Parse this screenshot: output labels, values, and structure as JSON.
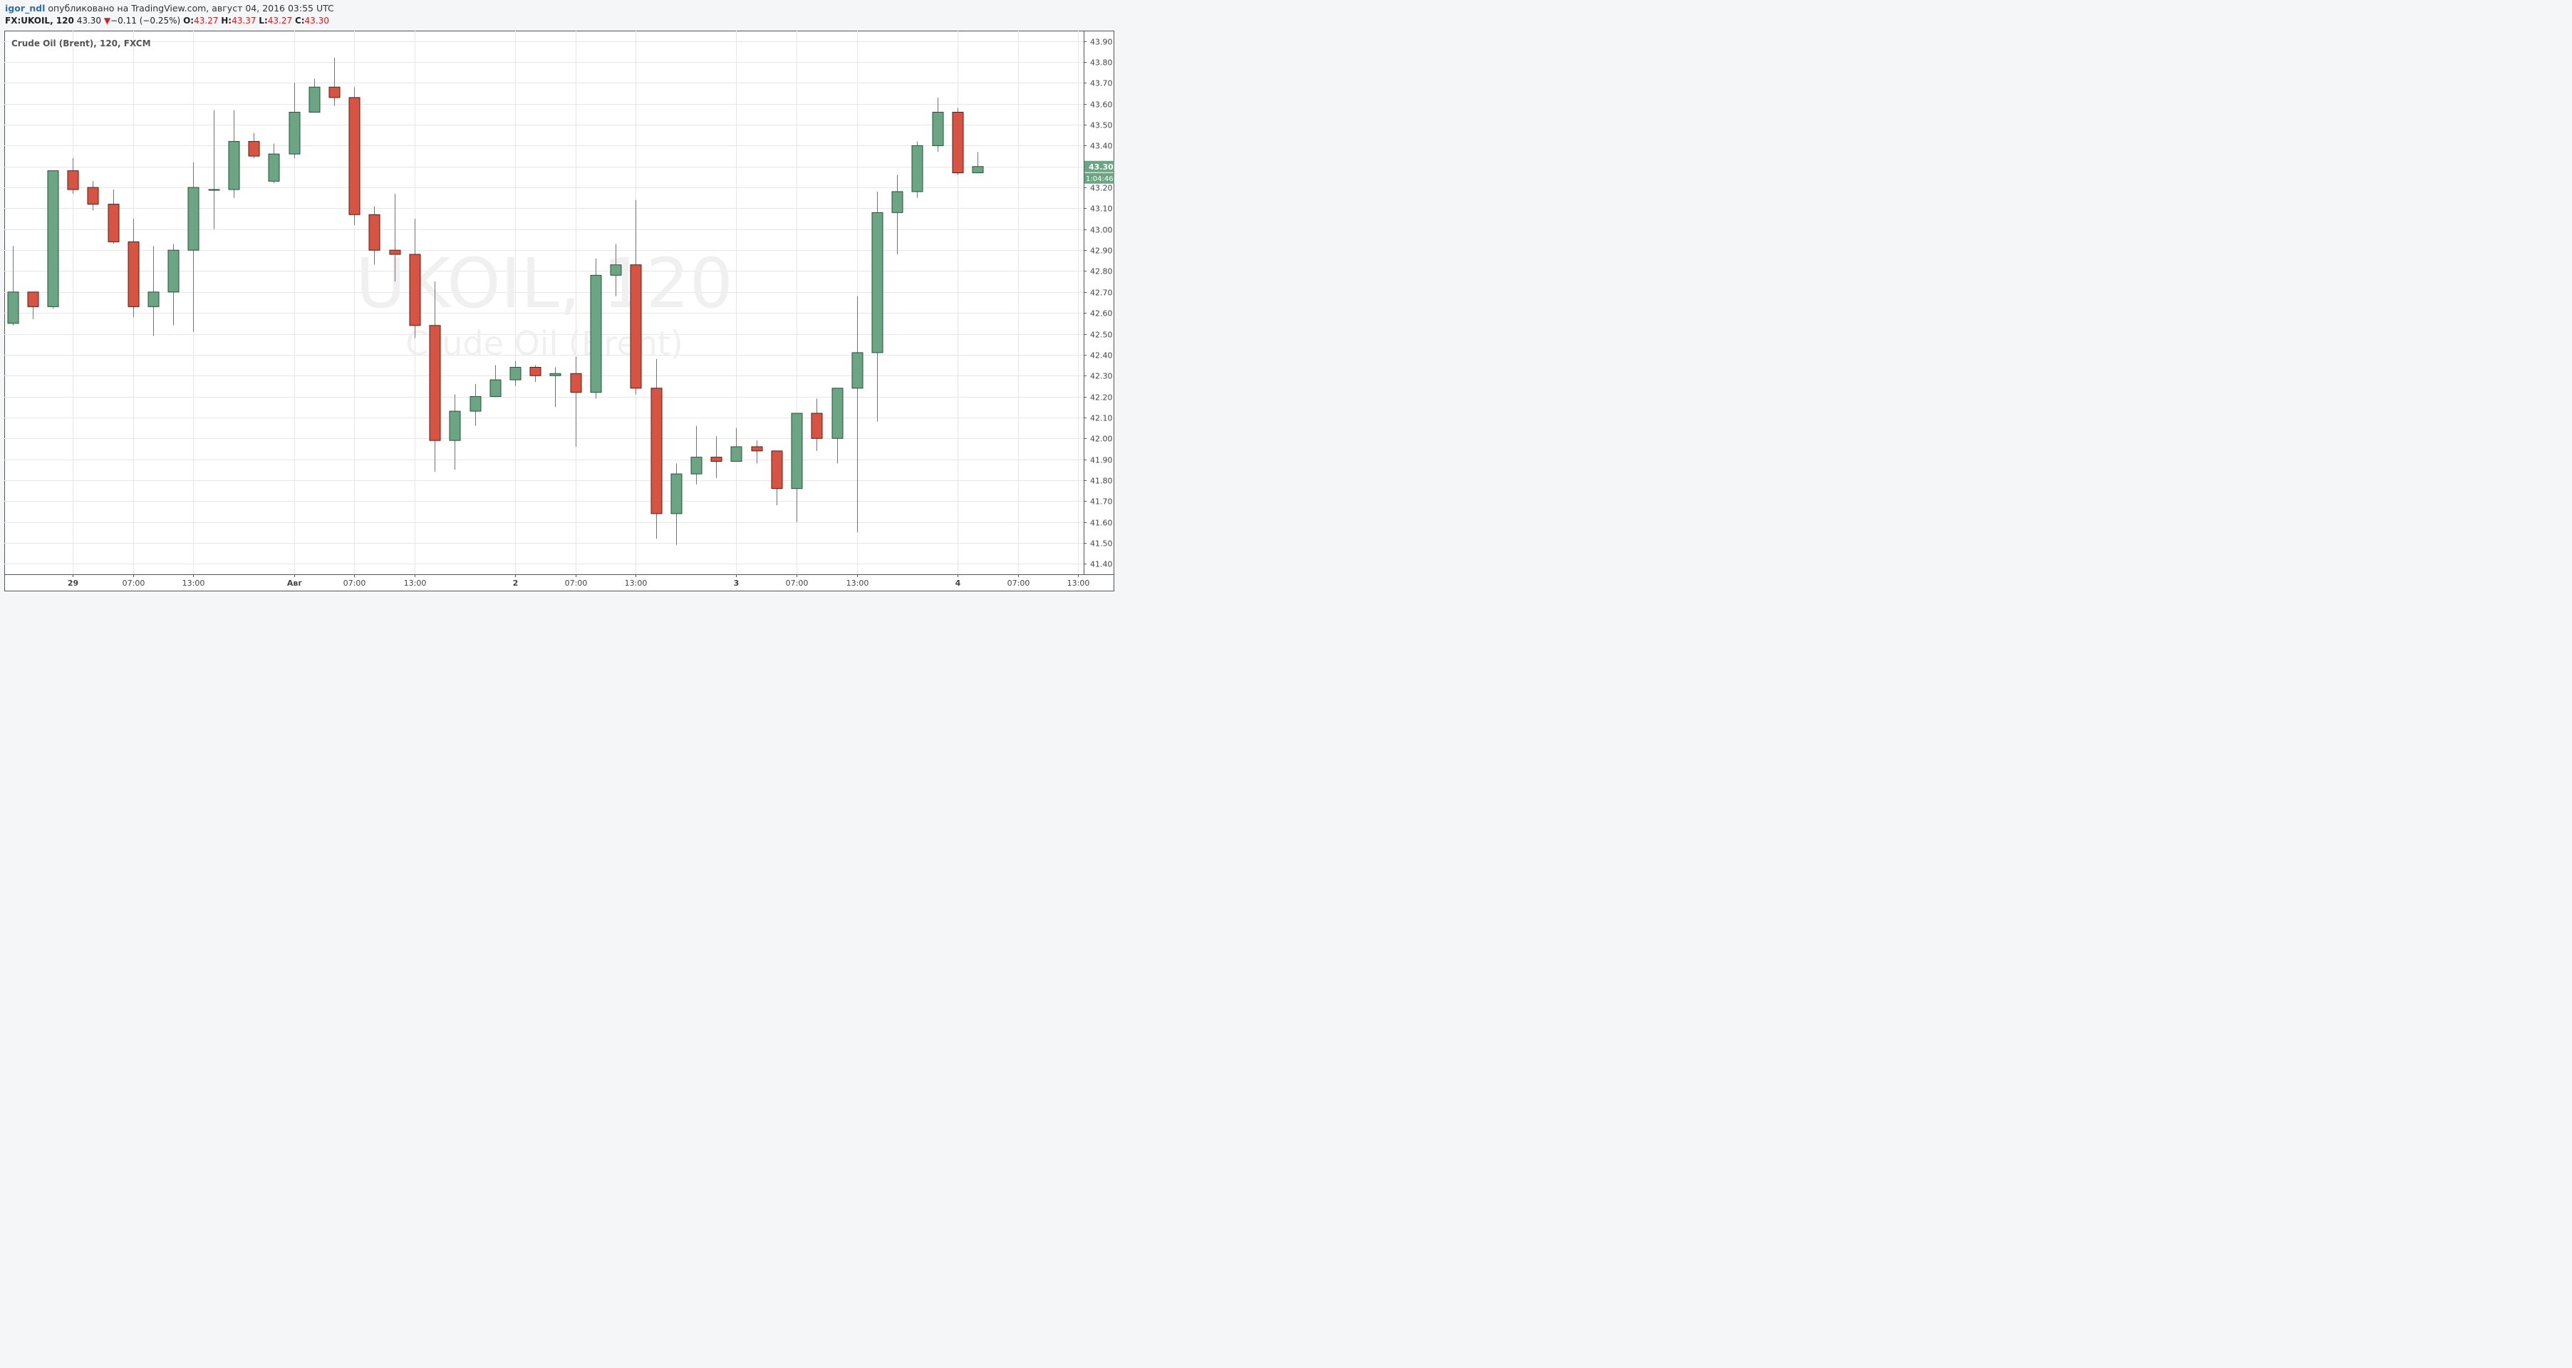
{
  "header": {
    "user": "igor_ndl",
    "published_text": "опубликовано на TradingView.com, август 04, 2016 03:55 UTC",
    "symbol": "FX:UKOIL, 120",
    "last": "43.30",
    "change_arrow": "▼",
    "change": "−0.11 (−0.25%)",
    "ohlc": [
      {
        "label": "O:",
        "value": "43.27"
      },
      {
        "label": "H:",
        "value": "43.37"
      },
      {
        "label": "L:",
        "value": "43.27"
      },
      {
        "label": "C:",
        "value": "43.30"
      }
    ]
  },
  "chart_data": {
    "type": "candlestick",
    "title": "Crude Oil (Brent), 120, FXCM",
    "watermark": {
      "main": "UKOIL, 120",
      "sub": "Crude Oil (Brent)"
    },
    "ylim": [
      41.35,
      43.95
    ],
    "y_ticks": [
      "43.90",
      "43.80",
      "43.70",
      "43.60",
      "43.50",
      "43.40",
      "43.30",
      "43.20",
      "43.10",
      "43.00",
      "42.90",
      "42.80",
      "42.70",
      "42.60",
      "42.50",
      "42.40",
      "42.30",
      "42.20",
      "42.10",
      "42.00",
      "41.90",
      "41.80",
      "41.70",
      "41.60",
      "41.50",
      "41.40"
    ],
    "x_ticks": [
      {
        "label": "29",
        "i": 3
      },
      {
        "label": "07:00",
        "i": 6
      },
      {
        "label": "13:00",
        "i": 9
      },
      {
        "label": "Авг",
        "i": 14
      },
      {
        "label": "07:00",
        "i": 17
      },
      {
        "label": "13:00",
        "i": 20
      },
      {
        "label": "2",
        "i": 25
      },
      {
        "label": "07:00",
        "i": 28
      },
      {
        "label": "13:00",
        "i": 31
      },
      {
        "label": "3",
        "i": 36
      },
      {
        "label": "07:00",
        "i": 39
      },
      {
        "label": "13:00",
        "i": 42
      },
      {
        "label": "4",
        "i": 47
      },
      {
        "label": "07:00",
        "i": 50
      },
      {
        "label": "13:00",
        "i": 53
      }
    ],
    "last_price_label": "43.30",
    "countdown_label": "1:04:46",
    "colors": {
      "up": "#6ba583",
      "down": "#d75442",
      "outline": "#225437",
      "down_outline": "#5b1a13",
      "wick": "#737375",
      "grid": "#e6e6e6"
    },
    "candles": [
      {
        "o": 42.55,
        "h": 42.92,
        "l": 42.54,
        "c": 42.7
      },
      {
        "o": 42.7,
        "h": 42.7,
        "l": 42.57,
        "c": 42.63
      },
      {
        "o": 42.63,
        "h": 43.28,
        "l": 42.62,
        "c": 43.28
      },
      {
        "o": 43.28,
        "h": 43.34,
        "l": 43.17,
        "c": 43.19
      },
      {
        "o": 43.2,
        "h": 43.23,
        "l": 43.09,
        "c": 43.12
      },
      {
        "o": 43.12,
        "h": 43.19,
        "l": 42.93,
        "c": 42.94
      },
      {
        "o": 42.94,
        "h": 43.05,
        "l": 42.58,
        "c": 42.63
      },
      {
        "o": 42.63,
        "h": 42.92,
        "l": 42.49,
        "c": 42.7
      },
      {
        "o": 42.7,
        "h": 42.93,
        "l": 42.54,
        "c": 42.9
      },
      {
        "o": 42.9,
        "h": 43.32,
        "l": 42.51,
        "c": 43.2
      },
      {
        "o": 43.19,
        "h": 43.57,
        "l": 43.0,
        "c": 43.19
      },
      {
        "o": 43.19,
        "h": 43.57,
        "l": 43.15,
        "c": 43.42
      },
      {
        "o": 43.42,
        "h": 43.46,
        "l": 43.34,
        "c": 43.35
      },
      {
        "o": 43.23,
        "h": 43.41,
        "l": 43.22,
        "c": 43.36
      },
      {
        "o": 43.36,
        "h": 43.7,
        "l": 43.34,
        "c": 43.56
      },
      {
        "o": 43.56,
        "h": 43.72,
        "l": 43.56,
        "c": 43.68
      },
      {
        "o": 43.68,
        "h": 43.82,
        "l": 43.59,
        "c": 43.63
      },
      {
        "o": 43.63,
        "h": 43.68,
        "l": 43.02,
        "c": 43.07
      },
      {
        "o": 43.07,
        "h": 43.11,
        "l": 42.83,
        "c": 42.9
      },
      {
        "o": 42.9,
        "h": 43.17,
        "l": 42.75,
        "c": 42.88
      },
      {
        "o": 42.88,
        "h": 43.05,
        "l": 42.48,
        "c": 42.54
      },
      {
        "o": 42.54,
        "h": 42.75,
        "l": 41.84,
        "c": 41.99
      },
      {
        "o": 41.99,
        "h": 42.21,
        "l": 41.85,
        "c": 42.13
      },
      {
        "o": 42.13,
        "h": 42.26,
        "l": 42.06,
        "c": 42.2
      },
      {
        "o": 42.2,
        "h": 42.35,
        "l": 42.2,
        "c": 42.28
      },
      {
        "o": 42.28,
        "h": 42.37,
        "l": 42.25,
        "c": 42.34
      },
      {
        "o": 42.34,
        "h": 42.35,
        "l": 42.27,
        "c": 42.3
      },
      {
        "o": 42.3,
        "h": 42.34,
        "l": 42.15,
        "c": 42.31
      },
      {
        "o": 42.31,
        "h": 42.39,
        "l": 41.96,
        "c": 42.22
      },
      {
        "o": 42.22,
        "h": 42.86,
        "l": 42.19,
        "c": 42.78
      },
      {
        "o": 42.78,
        "h": 42.93,
        "l": 42.68,
        "c": 42.83
      },
      {
        "o": 42.83,
        "h": 43.14,
        "l": 42.21,
        "c": 42.24
      },
      {
        "o": 42.24,
        "h": 42.38,
        "l": 41.52,
        "c": 41.64
      },
      {
        "o": 41.64,
        "h": 41.88,
        "l": 41.49,
        "c": 41.83
      },
      {
        "o": 41.83,
        "h": 42.06,
        "l": 41.78,
        "c": 41.91
      },
      {
        "o": 41.91,
        "h": 42.01,
        "l": 41.81,
        "c": 41.89
      },
      {
        "o": 41.89,
        "h": 42.05,
        "l": 41.89,
        "c": 41.96
      },
      {
        "o": 41.96,
        "h": 41.99,
        "l": 41.88,
        "c": 41.94
      },
      {
        "o": 41.94,
        "h": 41.94,
        "l": 41.68,
        "c": 41.76
      },
      {
        "o": 41.76,
        "h": 42.12,
        "l": 41.6,
        "c": 42.12
      },
      {
        "o": 42.12,
        "h": 42.19,
        "l": 41.94,
        "c": 42.0
      },
      {
        "o": 42.0,
        "h": 42.24,
        "l": 41.88,
        "c": 42.24
      },
      {
        "o": 42.24,
        "h": 42.68,
        "l": 41.55,
        "c": 42.41
      },
      {
        "o": 42.41,
        "h": 43.18,
        "l": 42.08,
        "c": 43.08
      },
      {
        "o": 43.08,
        "h": 43.26,
        "l": 42.88,
        "c": 43.18
      },
      {
        "o": 43.18,
        "h": 43.42,
        "l": 43.15,
        "c": 43.4
      },
      {
        "o": 43.4,
        "h": 43.63,
        "l": 43.37,
        "c": 43.56
      },
      {
        "o": 43.56,
        "h": 43.58,
        "l": 43.26,
        "c": 43.27
      },
      {
        "o": 43.27,
        "h": 43.37,
        "l": 43.27,
        "c": 43.3
      }
    ]
  }
}
